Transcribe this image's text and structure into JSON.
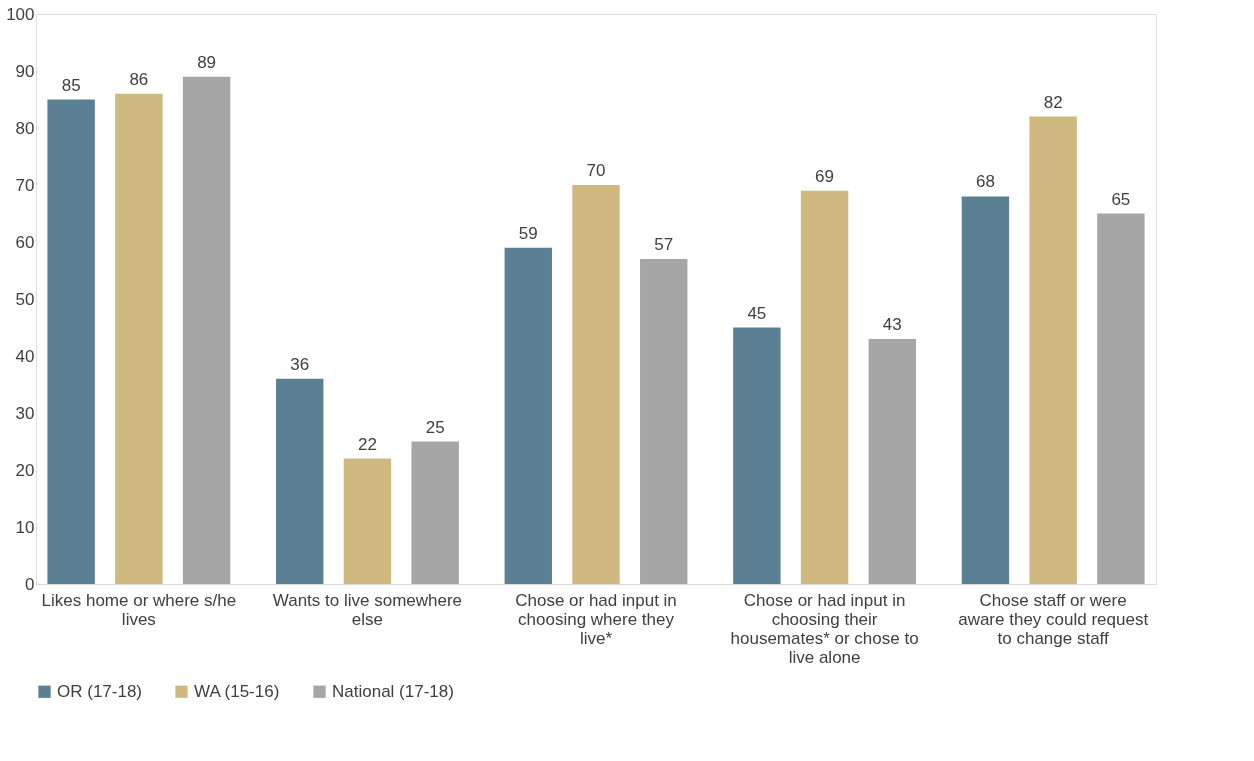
{
  "chart_data": {
    "type": "bar",
    "categories": [
      "Likes home or where s/he lives",
      "Wants to live somewhere else",
      "Chose or had input in choosing where they live*",
      "Chose or had input in choosing their housemates* or chose to live alone",
      "Chose staff or were aware they could request to change staff"
    ],
    "series": [
      {
        "name": "OR (17-18)",
        "color": "#5b7f93",
        "values": [
          85,
          36,
          59,
          45,
          68
        ]
      },
      {
        "name": "WA (15-16)",
        "color": "#cfb981",
        "values": [
          86,
          22,
          70,
          69,
          82
        ]
      },
      {
        "name": "National (17-18)",
        "color": "#a6a6a6",
        "values": [
          89,
          25,
          57,
          43,
          65
        ]
      }
    ],
    "ylim": [
      0,
      100
    ],
    "yticks": [
      0,
      10,
      20,
      30,
      40,
      50,
      60,
      70,
      80,
      90,
      100
    ],
    "data_labels": true,
    "grid": false,
    "legend": "bottom"
  }
}
